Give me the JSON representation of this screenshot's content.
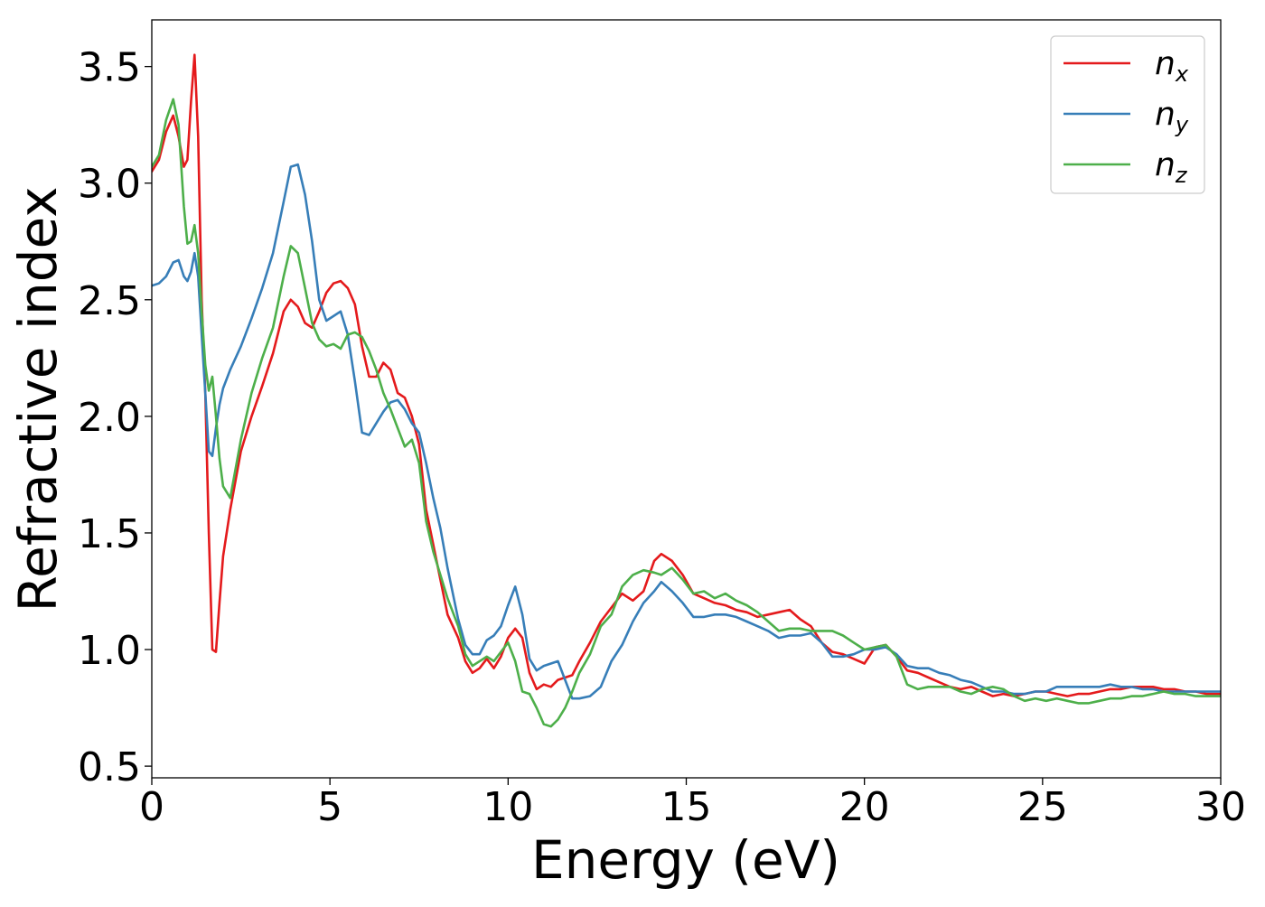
{
  "chart_data": {
    "type": "line",
    "title": "",
    "xlabel": "Energy (eV)",
    "ylabel": "Refractive index",
    "xlim": [
      0,
      30
    ],
    "ylim": [
      0.45,
      3.7
    ],
    "xticks": [
      0,
      5,
      10,
      15,
      20,
      25,
      30
    ],
    "xtick_labels": [
      "0",
      "5",
      "10",
      "15",
      "20",
      "25",
      "30"
    ],
    "yticks": [
      0.5,
      1.0,
      1.5,
      2.0,
      2.5,
      3.0,
      3.5
    ],
    "ytick_labels": [
      "0.5",
      "1.0",
      "1.5",
      "2.0",
      "2.5",
      "3.0",
      "3.5"
    ],
    "grid": false,
    "legend_position": "top-right",
    "series": [
      {
        "name": "n",
        "subscript": "x",
        "color": "#e41a1c",
        "x": [
          0,
          0.2,
          0.4,
          0.6,
          0.75,
          0.9,
          1.0,
          1.1,
          1.2,
          1.3,
          1.4,
          1.5,
          1.6,
          1.7,
          1.8,
          1.9,
          2.0,
          2.2,
          2.5,
          2.8,
          3.1,
          3.4,
          3.7,
          3.9,
          4.1,
          4.3,
          4.5,
          4.7,
          4.9,
          5.1,
          5.3,
          5.5,
          5.7,
          5.9,
          6.1,
          6.3,
          6.5,
          6.7,
          6.9,
          7.1,
          7.3,
          7.5,
          7.7,
          7.9,
          8.1,
          8.3,
          8.6,
          8.8,
          9.0,
          9.2,
          9.4,
          9.6,
          9.8,
          10.0,
          10.2,
          10.4,
          10.6,
          10.8,
          11.0,
          11.2,
          11.4,
          11.6,
          11.8,
          12.0,
          12.3,
          12.6,
          12.9,
          13.2,
          13.5,
          13.8,
          14.1,
          14.3,
          14.6,
          14.9,
          15.2,
          15.5,
          15.8,
          16.1,
          16.4,
          16.7,
          17.0,
          17.3,
          17.6,
          17.9,
          18.2,
          18.5,
          18.8,
          19.1,
          19.4,
          19.7,
          20.0,
          20.3,
          20.6,
          20.9,
          21.2,
          21.5,
          21.8,
          22.1,
          22.4,
          22.7,
          23.0,
          23.3,
          23.6,
          23.9,
          24.2,
          24.5,
          24.8,
          25.1,
          25.4,
          25.7,
          26.0,
          26.3,
          26.6,
          26.9,
          27.2,
          27.5,
          27.8,
          28.1,
          28.4,
          28.7,
          29.0,
          29.3,
          29.6,
          30.0
        ],
        "y": [
          3.05,
          3.1,
          3.22,
          3.29,
          3.2,
          3.07,
          3.1,
          3.35,
          3.55,
          3.2,
          2.5,
          2.1,
          1.5,
          1.0,
          0.99,
          1.2,
          1.4,
          1.6,
          1.85,
          2.0,
          2.13,
          2.27,
          2.45,
          2.5,
          2.47,
          2.4,
          2.38,
          2.45,
          2.53,
          2.57,
          2.58,
          2.55,
          2.48,
          2.3,
          2.17,
          2.17,
          2.23,
          2.2,
          2.1,
          2.08,
          2.0,
          1.88,
          1.6,
          1.45,
          1.3,
          1.15,
          1.05,
          0.95,
          0.9,
          0.92,
          0.96,
          0.92,
          0.97,
          1.05,
          1.09,
          1.05,
          0.9,
          0.83,
          0.85,
          0.84,
          0.87,
          0.88,
          0.89,
          0.95,
          1.03,
          1.12,
          1.18,
          1.24,
          1.21,
          1.25,
          1.38,
          1.41,
          1.38,
          1.32,
          1.24,
          1.22,
          1.2,
          1.19,
          1.17,
          1.16,
          1.14,
          1.15,
          1.16,
          1.17,
          1.13,
          1.1,
          1.03,
          0.99,
          0.98,
          0.96,
          0.94,
          1.01,
          1.02,
          0.97,
          0.91,
          0.9,
          0.88,
          0.86,
          0.84,
          0.83,
          0.84,
          0.82,
          0.8,
          0.81,
          0.8,
          0.81,
          0.82,
          0.82,
          0.81,
          0.8,
          0.81,
          0.81,
          0.82,
          0.83,
          0.83,
          0.84,
          0.84,
          0.84,
          0.83,
          0.83,
          0.82,
          0.82,
          0.81,
          0.81
        ]
      },
      {
        "name": "n",
        "subscript": "y",
        "color": "#377eb8",
        "x": [
          0,
          0.2,
          0.4,
          0.6,
          0.75,
          0.9,
          1.0,
          1.1,
          1.2,
          1.3,
          1.4,
          1.5,
          1.6,
          1.7,
          1.8,
          1.9,
          2.0,
          2.2,
          2.5,
          2.8,
          3.1,
          3.4,
          3.7,
          3.9,
          4.1,
          4.3,
          4.5,
          4.7,
          4.9,
          5.1,
          5.3,
          5.5,
          5.7,
          5.9,
          6.1,
          6.3,
          6.5,
          6.7,
          6.9,
          7.1,
          7.3,
          7.5,
          7.7,
          7.9,
          8.1,
          8.3,
          8.6,
          8.8,
          9.0,
          9.2,
          9.4,
          9.6,
          9.8,
          10.0,
          10.2,
          10.4,
          10.6,
          10.8,
          11.0,
          11.2,
          11.4,
          11.6,
          11.8,
          12.0,
          12.3,
          12.6,
          12.9,
          13.2,
          13.5,
          13.8,
          14.1,
          14.3,
          14.6,
          14.9,
          15.2,
          15.5,
          15.8,
          16.1,
          16.4,
          16.7,
          17.0,
          17.3,
          17.6,
          17.9,
          18.2,
          18.5,
          18.8,
          19.1,
          19.4,
          19.7,
          20.0,
          20.3,
          20.6,
          20.9,
          21.2,
          21.5,
          21.8,
          22.1,
          22.4,
          22.7,
          23.0,
          23.3,
          23.6,
          23.9,
          24.2,
          24.5,
          24.8,
          25.1,
          25.4,
          25.7,
          26.0,
          26.3,
          26.6,
          26.9,
          27.2,
          27.5,
          27.8,
          28.1,
          28.4,
          28.7,
          29.0,
          29.3,
          29.6,
          30.0
        ],
        "y": [
          2.56,
          2.57,
          2.6,
          2.66,
          2.67,
          2.6,
          2.58,
          2.62,
          2.7,
          2.6,
          2.35,
          2.1,
          1.85,
          1.83,
          1.95,
          2.05,
          2.12,
          2.2,
          2.3,
          2.42,
          2.55,
          2.7,
          2.92,
          3.07,
          3.08,
          2.95,
          2.75,
          2.5,
          2.41,
          2.43,
          2.45,
          2.35,
          2.15,
          1.93,
          1.92,
          1.97,
          2.02,
          2.06,
          2.07,
          2.03,
          1.97,
          1.93,
          1.8,
          1.65,
          1.52,
          1.35,
          1.13,
          1.02,
          0.98,
          0.98,
          1.04,
          1.06,
          1.1,
          1.19,
          1.27,
          1.15,
          0.96,
          0.91,
          0.93,
          0.94,
          0.95,
          0.87,
          0.79,
          0.79,
          0.8,
          0.84,
          0.95,
          1.02,
          1.12,
          1.2,
          1.25,
          1.29,
          1.25,
          1.2,
          1.14,
          1.14,
          1.15,
          1.15,
          1.14,
          1.12,
          1.1,
          1.08,
          1.05,
          1.06,
          1.06,
          1.07,
          1.03,
          0.97,
          0.97,
          0.98,
          1.0,
          1.0,
          1.01,
          0.98,
          0.93,
          0.92,
          0.92,
          0.9,
          0.89,
          0.87,
          0.86,
          0.84,
          0.82,
          0.82,
          0.81,
          0.81,
          0.82,
          0.82,
          0.84,
          0.84,
          0.84,
          0.84,
          0.84,
          0.85,
          0.84,
          0.84,
          0.83,
          0.83,
          0.82,
          0.82,
          0.82,
          0.82,
          0.82,
          0.82
        ]
      },
      {
        "name": "n",
        "subscript": "z",
        "color": "#4daf4a",
        "x": [
          0,
          0.2,
          0.4,
          0.6,
          0.75,
          0.9,
          1.0,
          1.1,
          1.2,
          1.3,
          1.4,
          1.5,
          1.6,
          1.7,
          1.8,
          1.9,
          2.0,
          2.2,
          2.5,
          2.8,
          3.1,
          3.4,
          3.7,
          3.9,
          4.1,
          4.3,
          4.5,
          4.7,
          4.9,
          5.1,
          5.3,
          5.5,
          5.7,
          5.9,
          6.1,
          6.3,
          6.5,
          6.7,
          6.9,
          7.1,
          7.3,
          7.5,
          7.7,
          7.9,
          8.1,
          8.3,
          8.6,
          8.8,
          9.0,
          9.2,
          9.4,
          9.6,
          9.8,
          10.0,
          10.2,
          10.4,
          10.6,
          10.8,
          11.0,
          11.2,
          11.4,
          11.6,
          11.8,
          12.0,
          12.3,
          12.6,
          12.9,
          13.2,
          13.5,
          13.8,
          14.1,
          14.3,
          14.6,
          14.9,
          15.2,
          15.5,
          15.8,
          16.1,
          16.4,
          16.7,
          17.0,
          17.3,
          17.6,
          17.9,
          18.2,
          18.5,
          18.8,
          19.1,
          19.4,
          19.7,
          20.0,
          20.3,
          20.6,
          20.9,
          21.2,
          21.5,
          21.8,
          22.1,
          22.4,
          22.7,
          23.0,
          23.3,
          23.6,
          23.9,
          24.2,
          24.5,
          24.8,
          25.1,
          25.4,
          25.7,
          26.0,
          26.3,
          26.6,
          26.9,
          27.2,
          27.5,
          27.8,
          28.1,
          28.4,
          28.7,
          29.0,
          29.3,
          29.6,
          30.0
        ],
        "y": [
          3.07,
          3.12,
          3.27,
          3.36,
          3.25,
          2.9,
          2.74,
          2.75,
          2.82,
          2.7,
          2.45,
          2.22,
          2.11,
          2.17,
          2.0,
          1.82,
          1.7,
          1.65,
          1.9,
          2.1,
          2.25,
          2.38,
          2.6,
          2.73,
          2.7,
          2.55,
          2.4,
          2.33,
          2.3,
          2.31,
          2.29,
          2.35,
          2.36,
          2.34,
          2.28,
          2.2,
          2.1,
          2.03,
          1.95,
          1.87,
          1.9,
          1.8,
          1.55,
          1.42,
          1.32,
          1.22,
          1.1,
          0.98,
          0.93,
          0.95,
          0.97,
          0.95,
          0.99,
          1.03,
          0.95,
          0.82,
          0.81,
          0.75,
          0.68,
          0.67,
          0.7,
          0.75,
          0.82,
          0.9,
          0.98,
          1.1,
          1.15,
          1.27,
          1.32,
          1.34,
          1.33,
          1.32,
          1.35,
          1.3,
          1.24,
          1.25,
          1.22,
          1.24,
          1.21,
          1.19,
          1.16,
          1.12,
          1.08,
          1.09,
          1.09,
          1.08,
          1.08,
          1.08,
          1.06,
          1.03,
          1.0,
          1.01,
          1.02,
          0.97,
          0.85,
          0.83,
          0.84,
          0.84,
          0.84,
          0.82,
          0.81,
          0.83,
          0.84,
          0.83,
          0.8,
          0.78,
          0.79,
          0.78,
          0.79,
          0.78,
          0.77,
          0.77,
          0.78,
          0.79,
          0.79,
          0.8,
          0.8,
          0.81,
          0.82,
          0.81,
          0.81,
          0.8,
          0.8,
          0.8
        ]
      }
    ]
  }
}
